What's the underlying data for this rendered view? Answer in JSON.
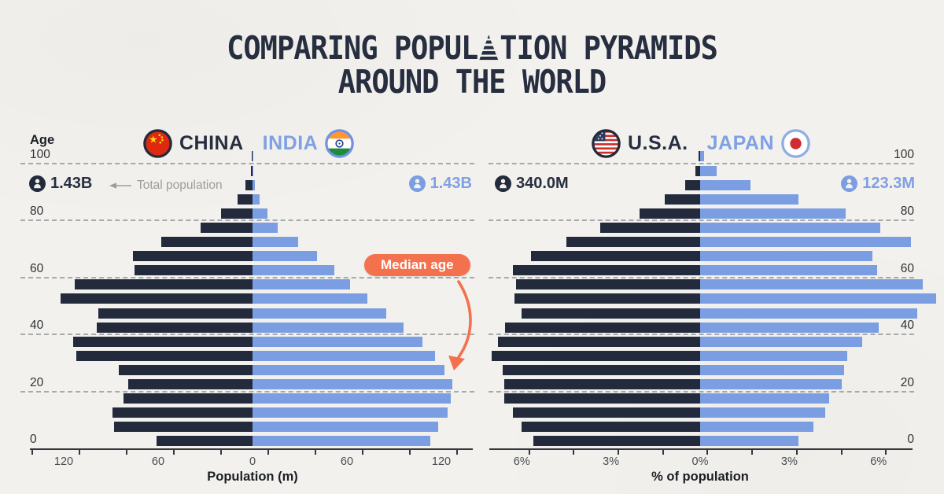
{
  "title": {
    "line1_pre": "COMPARING POPUL",
    "line1_post": "TION PYRAMIDS",
    "line2": "AROUND THE WORLD"
  },
  "labels": {
    "age": "Age",
    "total_population": "Total population",
    "median_age": "Median age"
  },
  "colors": {
    "background": "#F3F1ED",
    "dark_series": "#222A3C",
    "blue_series": "#7B9DE2",
    "accent_coral": "#F4714E",
    "gray_text": "#9C9C9C",
    "dark_text": "#262E40"
  },
  "chart_data": [
    {
      "type": "bar",
      "variant": "population-pyramid",
      "left_series": {
        "name": "CHINA",
        "flag": "china-flag",
        "total": "1.43B",
        "color": "#222A3C"
      },
      "right_series": {
        "name": "INDIA",
        "flag": "india-flag",
        "total": "1.43B",
        "color": "#7B9DE2"
      },
      "unit": "millions of people",
      "xlabel": "Population (m)",
      "x_tick_labels": [
        "120",
        "60",
        "0",
        "60",
        "120"
      ],
      "age_ticks": [
        0,
        20,
        40,
        60,
        80,
        100
      ],
      "age_groups": [
        "0-4",
        "5-9",
        "10-14",
        "15-19",
        "20-24",
        "25-29",
        "30-34",
        "35-39",
        "40-44",
        "45-49",
        "50-54",
        "55-59",
        "60-64",
        "65-69",
        "70-74",
        "75-79",
        "80-84",
        "85-89",
        "90-94",
        "95-99",
        "100+"
      ],
      "left_values": [
        61,
        88,
        89,
        82,
        79,
        85,
        112,
        114,
        99,
        98,
        122,
        113,
        75,
        76,
        58,
        33,
        20,
        9.5,
        4.5,
        1.2,
        0.5
      ],
      "right_values": [
        113,
        118,
        124,
        126,
        127,
        122,
        116,
        108,
        96,
        85,
        73,
        62,
        52,
        41,
        29,
        16,
        9.5,
        4.5,
        1.5,
        0.4,
        0.15
      ]
    },
    {
      "type": "bar",
      "variant": "population-pyramid",
      "left_series": {
        "name": "U.S.A.",
        "flag": "usa-flag",
        "total": "340.0M",
        "color": "#222A3C"
      },
      "right_series": {
        "name": "JAPAN",
        "flag": "japan-flag",
        "total": "123.3M",
        "color": "#7B9DE2"
      },
      "unit": "% of total population",
      "xlabel": "% of population",
      "x_tick_labels": [
        "6%",
        "3%",
        "0%",
        "3%",
        "6%"
      ],
      "age_ticks": [
        0,
        20,
        40,
        60,
        80,
        100
      ],
      "age_groups": [
        "0-4",
        "5-9",
        "10-14",
        "15-19",
        "20-24",
        "25-29",
        "30-34",
        "35-39",
        "40-44",
        "45-49",
        "50-54",
        "55-59",
        "60-64",
        "65-69",
        "70-74",
        "75-79",
        "80-84",
        "85-89",
        "90-94",
        "95-99",
        "100+"
      ],
      "left_values": [
        5.6,
        6.0,
        6.3,
        6.6,
        6.6,
        6.65,
        7.0,
        6.8,
        6.55,
        6.0,
        6.25,
        6.2,
        6.3,
        5.7,
        4.5,
        3.35,
        2.05,
        1.2,
        0.5,
        0.15,
        0.05
      ],
      "right_values": [
        3.3,
        3.8,
        4.2,
        4.35,
        4.75,
        4.85,
        4.95,
        5.45,
        6.0,
        7.3,
        7.95,
        7.5,
        5.95,
        5.8,
        7.1,
        6.05,
        4.9,
        3.3,
        1.7,
        0.55,
        0.12
      ]
    }
  ]
}
